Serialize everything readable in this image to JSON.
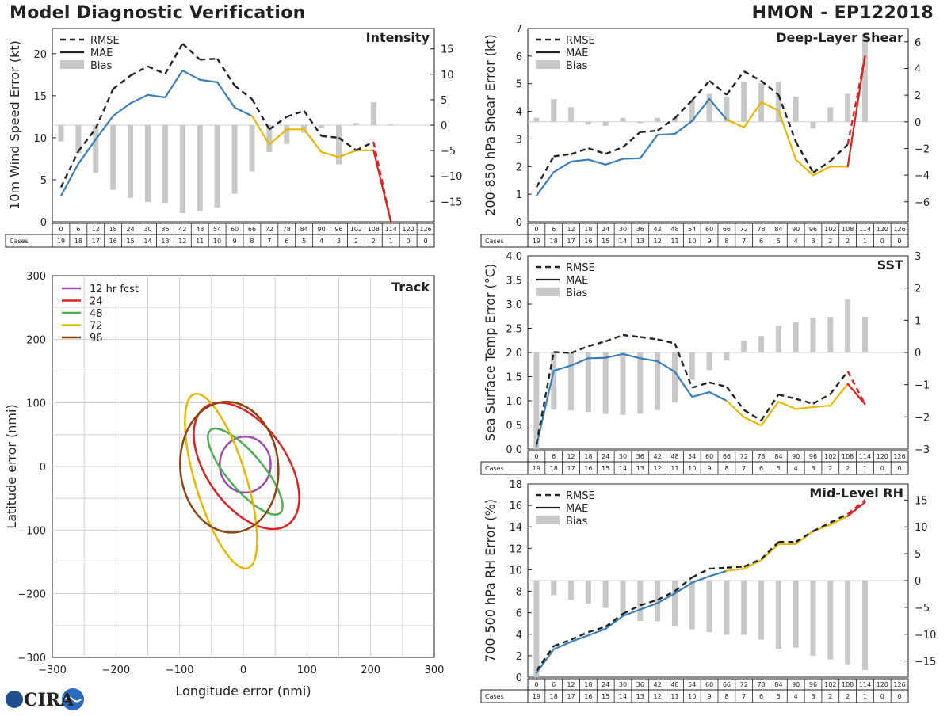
{
  "header": {
    "left": "Model Diagnostic Verification",
    "right": "HMON - EP122018"
  },
  "logo_text": "CIRA",
  "legend_labels": {
    "rmse": "RMSE",
    "mae": "MAE",
    "bias": "Bias"
  },
  "cases_label": "Cases",
  "colors": {
    "early": "#3a7fb8",
    "mid": "#e6b800",
    "late": "#dc2222",
    "bias": "#c8c8c8",
    "rmse": "#222222"
  },
  "forecast_hours": [
    0,
    6,
    12,
    18,
    24,
    30,
    36,
    42,
    48,
    54,
    60,
    66,
    72,
    78,
    84,
    90,
    96,
    102,
    108,
    114,
    120,
    126
  ],
  "cases": [
    19,
    18,
    17,
    16,
    15,
    14,
    13,
    12,
    11,
    10,
    9,
    8,
    7,
    6,
    5,
    4,
    3,
    2,
    2,
    1,
    0,
    0
  ],
  "chart_data": [
    {
      "id": "intensity",
      "type": "line",
      "title": "Intensity",
      "ylabel": "10m Wind Speed Error (kt)",
      "ylim": [
        0,
        23
      ],
      "yticks": [
        0,
        5,
        10,
        15,
        20
      ],
      "y2lim": [
        -19,
        19
      ],
      "y2ticks": [
        -15,
        -10,
        -5,
        0,
        5,
        10,
        15
      ],
      "mae": [
        3.1,
        6.9,
        9.8,
        12.6,
        14.1,
        15.1,
        14.8,
        18.0,
        16.9,
        16.6,
        13.6,
        12.6,
        9.2,
        11.0,
        11.0,
        8.3,
        7.7,
        8.5,
        8.5,
        0
      ],
      "rmse": [
        4.1,
        8.4,
        11.1,
        15.8,
        17.4,
        18.5,
        17.6,
        21.2,
        19.3,
        19.4,
        16.2,
        14.6,
        11.0,
        12.5,
        13.2,
        10.2,
        10.0,
        8.5,
        9.5,
        0
      ],
      "bias": [
        -3.2,
        -5.5,
        -9.4,
        -12.7,
        -14.3,
        -15.1,
        -15.3,
        -17.3,
        -16.9,
        -16.2,
        -13.5,
        -9.1,
        -5.3,
        -3.7,
        -1.5,
        -0.5,
        -7.7,
        0.4,
        4.5,
        0.2
      ]
    },
    {
      "id": "shear",
      "type": "line",
      "title": "Deep-Layer Shear",
      "ylabel": "200-850 hPa Shear Error (kt)",
      "ylim": [
        0,
        7
      ],
      "yticks": [
        0,
        1,
        2,
        3,
        4,
        5,
        6,
        7
      ],
      "y2lim": [
        -7.5,
        7
      ],
      "y2ticks": [
        -6,
        -4,
        -2,
        0,
        2,
        4,
        6
      ],
      "mae": [
        0.95,
        1.8,
        2.18,
        2.25,
        2.07,
        2.28,
        2.3,
        3.15,
        3.18,
        3.65,
        4.45,
        3.7,
        3.42,
        4.33,
        4.03,
        2.25,
        1.68,
        2.0,
        2.0,
        6.0
      ],
      "rmse": [
        1.25,
        2.37,
        2.45,
        2.66,
        2.46,
        2.7,
        3.25,
        3.3,
        3.75,
        4.4,
        5.1,
        4.6,
        5.45,
        5.1,
        4.6,
        2.9,
        1.78,
        2.2,
        2.8,
        6.0
      ],
      "bias": [
        0.3,
        1.7,
        1.1,
        -0.2,
        -0.3,
        0.3,
        -0.1,
        0.3,
        0.3,
        1.6,
        2.1,
        1.9,
        3.0,
        2.9,
        3.0,
        1.9,
        -0.5,
        1.1,
        2.1,
        6.6
      ]
    },
    {
      "id": "sst",
      "type": "line",
      "title": "SST",
      "ylabel": "Sea Surface Temp Error (°C)",
      "ylim": [
        0,
        4
      ],
      "yticks": [
        0.0,
        0.5,
        1.0,
        1.5,
        2.0,
        2.5,
        3.0,
        3.5,
        4.0
      ],
      "y2lim": [
        -3,
        3
      ],
      "y2ticks": [
        -3,
        -2,
        -1,
        0,
        1,
        2,
        3
      ],
      "mae": [
        0.07,
        1.62,
        1.73,
        1.88,
        1.89,
        1.97,
        1.88,
        1.82,
        1.6,
        1.08,
        1.18,
        1.0,
        0.66,
        0.49,
        0.98,
        0.83,
        0.87,
        0.9,
        1.35,
        0.93
      ],
      "rmse": [
        0.1,
        2.01,
        1.99,
        2.13,
        2.23,
        2.36,
        2.32,
        2.27,
        2.19,
        1.27,
        1.38,
        1.29,
        0.81,
        0.59,
        1.13,
        1.04,
        0.94,
        1.14,
        1.61,
        0.93
      ],
      "bias": [
        -3.0,
        -1.77,
        -1.8,
        -1.85,
        -1.91,
        -1.94,
        -1.9,
        -1.79,
        -1.55,
        -0.85,
        -0.55,
        -0.25,
        0.36,
        0.51,
        0.83,
        0.94,
        1.08,
        1.1,
        1.65,
        1.11
      ]
    },
    {
      "id": "rh",
      "type": "line",
      "title": "Mid-Level RH",
      "ylabel": "700-500 hPa RH Error (%)",
      "ylim": [
        0,
        18
      ],
      "yticks": [
        0,
        2,
        4,
        6,
        8,
        10,
        12,
        14,
        16,
        18
      ],
      "y2lim": [
        -18,
        18
      ],
      "y2ticks": [
        -15,
        -10,
        -5,
        0,
        5,
        10,
        15
      ],
      "mae": [
        0.4,
        2.6,
        3.3,
        3.9,
        4.5,
        5.7,
        6.3,
        6.9,
        7.8,
        8.8,
        9.4,
        9.9,
        10.1,
        10.9,
        12.4,
        12.4,
        13.6,
        14.2,
        15.0,
        16.3
      ],
      "rmse": [
        0.6,
        2.9,
        3.5,
        4.2,
        4.7,
        5.9,
        6.7,
        7.2,
        8.0,
        9.3,
        10.1,
        10.2,
        10.3,
        11.0,
        12.6,
        12.6,
        13.6,
        14.4,
        15.2,
        16.5
      ],
      "bias": [
        -18,
        -2.7,
        -3.6,
        -4.3,
        -5.1,
        -6.4,
        -7.5,
        -7.6,
        -8.5,
        -9.1,
        -9.6,
        -10.1,
        -10.1,
        -11.0,
        -12.7,
        -12.5,
        -14.0,
        -14.7,
        -15.6,
        -16.7
      ]
    },
    {
      "id": "track",
      "type": "scatter",
      "title": "Track",
      "xlabel": "Longitude error (nmi)",
      "ylabel": "Latitude error (nmi)",
      "xlim": [
        -300,
        300
      ],
      "ylim": [
        -300,
        300
      ],
      "xticks": [
        -300,
        -200,
        -100,
        0,
        100,
        200,
        300
      ],
      "yticks": [
        -300,
        -200,
        -100,
        0,
        100,
        200,
        300
      ],
      "ellipses": [
        {
          "label": "12 hr fcst",
          "color": "#a04ab0",
          "cx": 3,
          "cy": 3,
          "rx": 40,
          "ry": 44,
          "angle": 0
        },
        {
          "label": "24",
          "color": "#dc2222",
          "cx": 5,
          "cy": 1,
          "rx": 113,
          "ry": 63,
          "angle": -55
        },
        {
          "label": "48",
          "color": "#4caf50",
          "cx": 3,
          "cy": -8,
          "rx": 85,
          "ry": 28,
          "angle": -50
        },
        {
          "label": "72",
          "color": "#e6b800",
          "cx": -35,
          "cy": -23,
          "rx": 143,
          "ry": 40,
          "angle": -73
        },
        {
          "label": "96",
          "color": "#8b4513",
          "cx": -22,
          "cy": -1,
          "rx": 103,
          "ry": 77,
          "angle": -85
        }
      ]
    }
  ]
}
